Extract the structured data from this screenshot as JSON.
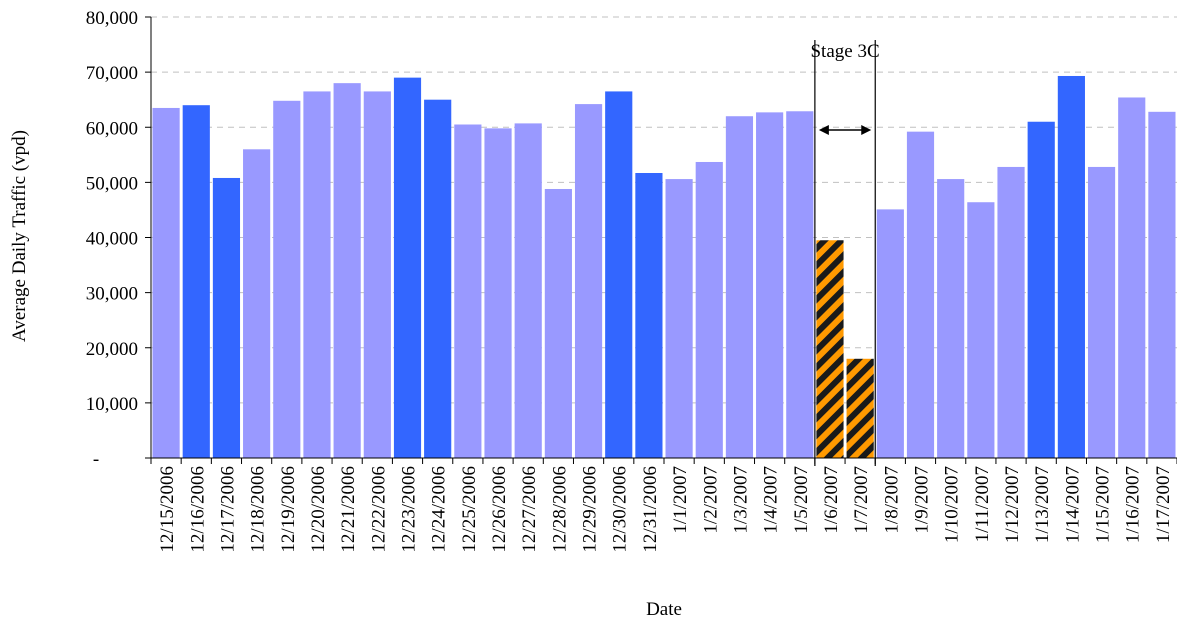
{
  "chart_data": {
    "type": "bar",
    "title": "",
    "xlabel": "Date",
    "ylabel": "Average Daily Traffic (vpd)",
    "ylim": [
      0,
      80000
    ],
    "yticks": [
      0,
      10000,
      20000,
      30000,
      40000,
      50000,
      60000,
      70000,
      80000
    ],
    "ytick_labels": [
      "-",
      "10,000",
      "20,000",
      "30,000",
      "40,000",
      "50,000",
      "60,000",
      "70,000",
      "80,000"
    ],
    "grid": "horizontal dashed",
    "categories": [
      "12/15/2006",
      "12/16/2006",
      "12/17/2006",
      "12/18/2006",
      "12/19/2006",
      "12/20/2006",
      "12/21/2006",
      "12/22/2006",
      "12/23/2006",
      "12/24/2006",
      "12/25/2006",
      "12/26/2006",
      "12/27/2006",
      "12/28/2006",
      "12/29/2006",
      "12/30/2006",
      "12/31/2006",
      "1/1/2007",
      "1/2/2007",
      "1/3/2007",
      "1/4/2007",
      "1/5/2007",
      "1/6/2007",
      "1/7/2007",
      "1/8/2007",
      "1/9/2007",
      "1/10/2007",
      "1/11/2007",
      "1/12/2007",
      "1/13/2007",
      "1/14/2007",
      "1/15/2007",
      "1/16/2007",
      "1/17/2007"
    ],
    "values": [
      63500,
      64000,
      50800,
      56000,
      64800,
      66500,
      68000,
      66500,
      69000,
      65000,
      60500,
      59800,
      60700,
      48800,
      64200,
      66500,
      51700,
      50600,
      53700,
      62000,
      62700,
      62900,
      39500,
      18000,
      45100,
      59200,
      50600,
      46400,
      52800,
      61000,
      69300,
      52800,
      65400,
      62800
    ],
    "bar_styles": [
      "light",
      "dark",
      "dark",
      "light",
      "light",
      "light",
      "light",
      "light",
      "dark",
      "dark",
      "light",
      "light",
      "light",
      "light",
      "light",
      "dark",
      "dark",
      "light",
      "light",
      "light",
      "light",
      "light",
      "hatched",
      "hatched",
      "light",
      "light",
      "light",
      "light",
      "light",
      "dark",
      "dark",
      "light",
      "light",
      "light"
    ],
    "colors": {
      "light": "#9999ff",
      "dark": "#3366ff",
      "hatch_a": "#1a1a1a",
      "hatch_b": "#ff9900",
      "gridline": "#c0c0c0"
    },
    "annotations": [
      {
        "text": "Stage 3C",
        "span": [
          "1/6/2007",
          "1/7/2007"
        ]
      }
    ]
  }
}
